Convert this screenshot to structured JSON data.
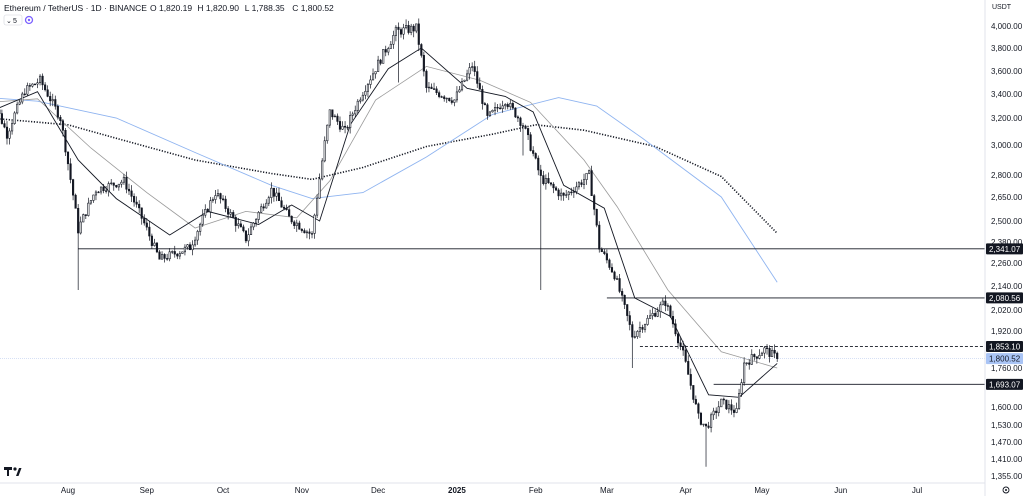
{
  "header": {
    "symbol": "Ethereum / TetherUS · 1D · BINANCE",
    "ohlc": [
      {
        "k": "O",
        "v": "1,820.19"
      },
      {
        "k": "H",
        "v": "1,820.90"
      },
      {
        "k": "L",
        "v": "1,788.35"
      },
      {
        "k": "C",
        "v": "1,800.52"
      }
    ],
    "indicator_count": "5",
    "currency": "USDT"
  },
  "colors": {
    "up": "#131722",
    "down": "#131722",
    "bg": "#ffffff",
    "hline": "#131722",
    "ma_blue": "#8fb4f0",
    "ma_black": "#131722",
    "ma_gray": "#9a9a9a",
    "price_label_bg": "#a9c4f5",
    "logo": "#131722"
  },
  "chart_data": {
    "type": "candlestick",
    "interval": "1D",
    "y_ticks": [
      "4,000.00",
      "3,800.00",
      "3,600.00",
      "3,400.00",
      "3,200.00",
      "3,000.00",
      "2,800.00",
      "2,650.00",
      "2,500.00",
      "2,380.00",
      "2,260.00",
      "2,140.00",
      "2,020.00",
      "1,920.00",
      "1,760.00",
      "1,600.00",
      "1,530.00",
      "1,470.00",
      "1,410.00",
      "1,355.00"
    ],
    "x_ticks": [
      "Aug",
      "Sep",
      "Oct",
      "Nov",
      "Dec",
      "2025",
      "Feb",
      "Mar",
      "Apr",
      "May",
      "Jun",
      "Jul"
    ],
    "price_labels": [
      {
        "value": "2,341.07",
        "style": "dark"
      },
      {
        "value": "2,080.56",
        "style": "dark"
      },
      {
        "value": "1,853.10",
        "style": "dark"
      },
      {
        "value": "1,800.52",
        "style": "current"
      },
      {
        "value": "1,693.07",
        "style": "dark"
      }
    ],
    "horizontal_levels": [
      {
        "price": 2341.07,
        "from": "2024-08-05",
        "style": "solid"
      },
      {
        "price": 2080.56,
        "from": "2025-03-01",
        "style": "solid"
      },
      {
        "price": 1853.1,
        "from": "2025-03-14",
        "style": "dashed"
      },
      {
        "price": 1693.07,
        "from": "2025-04-12",
        "style": "solid"
      }
    ],
    "candle_anchors": [
      [
        "2024-07-01",
        3420
      ],
      [
        "2024-07-08",
        3080
      ],
      [
        "2024-07-15",
        3430
      ],
      [
        "2024-07-21",
        3520
      ],
      [
        "2024-07-29",
        3200
      ],
      [
        "2024-08-05",
        2450
      ],
      [
        "2024-08-12",
        2700
      ],
      [
        "2024-08-23",
        2760
      ],
      [
        "2024-09-06",
        2280
      ],
      [
        "2024-09-18",
        2350
      ],
      [
        "2024-09-28",
        2680
      ],
      [
        "2024-10-10",
        2400
      ],
      [
        "2024-10-20",
        2700
      ],
      [
        "2024-10-27",
        2520
      ],
      [
        "2024-11-05",
        2420
      ],
      [
        "2024-11-12",
        3250
      ],
      [
        "2024-11-18",
        3100
      ],
      [
        "2024-11-24",
        3380
      ],
      [
        "2024-12-08",
        3950
      ],
      [
        "2024-12-16",
        3980
      ],
      [
        "2024-12-20",
        3450
      ],
      [
        "2024-12-31",
        3350
      ],
      [
        "2025-01-07",
        3650
      ],
      [
        "2025-01-13",
        3200
      ],
      [
        "2025-01-20",
        3350
      ],
      [
        "2025-01-27",
        3150
      ],
      [
        "2025-02-03",
        2780
      ],
      [
        "2025-02-12",
        2650
      ],
      [
        "2025-02-22",
        2800
      ],
      [
        "2025-02-26",
        2350
      ],
      [
        "2025-03-04",
        2200
      ],
      [
        "2025-03-11",
        1900
      ],
      [
        "2025-03-24",
        2060
      ],
      [
        "2025-03-31",
        1820
      ],
      [
        "2025-04-06",
        1560
      ],
      [
        "2025-04-09",
        1520
      ],
      [
        "2025-04-15",
        1620
      ],
      [
        "2025-04-21",
        1580
      ],
      [
        "2025-04-24",
        1780
      ],
      [
        "2025-05-02",
        1840
      ],
      [
        "2025-05-06",
        1810
      ],
      [
        "2025-05-07",
        1800.52
      ]
    ],
    "moving_averages": [
      {
        "style": "dotted-black",
        "points": [
          [
            "2024-07-01",
            3200
          ],
          [
            "2024-08-01",
            3150
          ],
          [
            "2024-08-20",
            3050
          ],
          [
            "2024-09-20",
            2900
          ],
          [
            "2024-10-20",
            2810
          ],
          [
            "2024-11-05",
            2770
          ],
          [
            "2024-11-25",
            2850
          ],
          [
            "2024-12-20",
            2990
          ],
          [
            "2025-01-15",
            3080
          ],
          [
            "2025-02-01",
            3150
          ],
          [
            "2025-02-20",
            3110
          ],
          [
            "2025-03-20",
            2990
          ],
          [
            "2025-04-15",
            2790
          ],
          [
            "2025-05-07",
            2430
          ]
        ]
      },
      {
        "style": "blue",
        "points": [
          [
            "2024-07-01",
            3370
          ],
          [
            "2024-07-20",
            3340
          ],
          [
            "2024-08-20",
            3200
          ],
          [
            "2024-09-20",
            2950
          ],
          [
            "2024-10-20",
            2730
          ],
          [
            "2024-11-05",
            2640
          ],
          [
            "2024-11-25",
            2680
          ],
          [
            "2024-12-20",
            2920
          ],
          [
            "2025-01-15",
            3230
          ],
          [
            "2025-02-10",
            3370
          ],
          [
            "2025-02-25",
            3300
          ],
          [
            "2025-03-15",
            3050
          ],
          [
            "2025-04-15",
            2650
          ],
          [
            "2025-05-07",
            2160
          ]
        ]
      },
      {
        "style": "gray",
        "points": [
          [
            "2024-07-01",
            3330
          ],
          [
            "2024-07-20",
            3360
          ],
          [
            "2024-08-10",
            2980
          ],
          [
            "2024-09-01",
            2680
          ],
          [
            "2024-09-20",
            2460
          ],
          [
            "2024-10-10",
            2560
          ],
          [
            "2024-10-30",
            2520
          ],
          [
            "2024-11-12",
            2760
          ],
          [
            "2024-11-30",
            3350
          ],
          [
            "2024-12-20",
            3640
          ],
          [
            "2025-01-10",
            3520
          ],
          [
            "2025-01-30",
            3330
          ],
          [
            "2025-02-20",
            2900
          ],
          [
            "2025-03-05",
            2590
          ],
          [
            "2025-03-25",
            2120
          ],
          [
            "2025-04-15",
            1830
          ],
          [
            "2025-05-07",
            1760
          ]
        ]
      },
      {
        "style": "black",
        "points": [
          [
            "2024-07-01",
            3250
          ],
          [
            "2024-07-20",
            3420
          ],
          [
            "2024-08-05",
            2900
          ],
          [
            "2024-08-20",
            2640
          ],
          [
            "2024-09-10",
            2420
          ],
          [
            "2024-09-25",
            2560
          ],
          [
            "2024-10-15",
            2480
          ],
          [
            "2024-10-28",
            2600
          ],
          [
            "2024-11-08",
            2500
          ],
          [
            "2024-11-20",
            3150
          ],
          [
            "2024-12-05",
            3620
          ],
          [
            "2024-12-18",
            3800
          ],
          [
            "2025-01-05",
            3450
          ],
          [
            "2025-01-20",
            3380
          ],
          [
            "2025-01-31",
            3250
          ],
          [
            "2025-02-12",
            2730
          ],
          [
            "2025-02-28",
            2580
          ],
          [
            "2025-03-12",
            2080
          ],
          [
            "2025-03-26",
            1990
          ],
          [
            "2025-04-10",
            1650
          ],
          [
            "2025-04-22",
            1640
          ],
          [
            "2025-05-07",
            1780
          ]
        ]
      }
    ]
  }
}
